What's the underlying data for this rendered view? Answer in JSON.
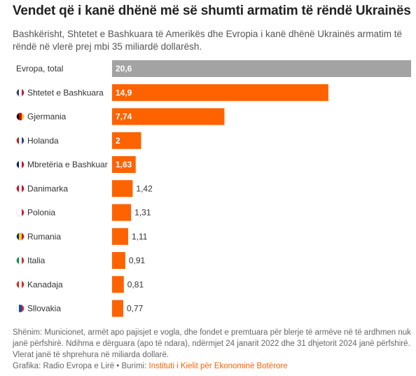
{
  "chart_data": {
    "type": "bar",
    "orientation": "horizontal",
    "title": "Vendet që i kanë dhënë më së shumti armatim të rëndë Ukrainës",
    "subtitle": "Bashkërisht, Shtetet e Bashkuara të Amerikës dhe Evropia i kanë dhënë Ukrainës armatim të rëndë në vlerë prej mbi 35 miliardë dollarësh.",
    "categories": [
      "Evropa, total",
      "Shtetet e Bashkuara",
      "Gjermania",
      "Holanda",
      "Mbretëria e Bashkuar",
      "Danimarka",
      "Polonia",
      "Rumania",
      "Italia",
      "Kanadaja",
      "Sllovakia"
    ],
    "values": [
      20.6,
      14.9,
      7.74,
      2,
      1.63,
      1.42,
      1.31,
      1.11,
      0.91,
      0.81,
      0.77
    ],
    "value_labels": [
      "20,6",
      "14,9",
      "7,74",
      "2",
      "1,63",
      "1,42",
      "1,31",
      "1,11",
      "0,91",
      "0,81",
      "0,77"
    ],
    "colors": [
      "#a3a3a3",
      "#ff6200",
      "#ff6200",
      "#ff6200",
      "#ff6200",
      "#ff6200",
      "#ff6200",
      "#ff6200",
      "#ff6200",
      "#ff6200",
      "#ff6200"
    ],
    "note": "Shënim: Municionet, armët apo pajisjet e vogla, dhe fondet e premtuara për blerje të armëve në të ardhmen nuk janë përfshirë. Ndihma e dërguara (apo të ndara), ndërmjet 24 janarit 2022 dhe 31 dhjetorit 2024 janë përfshirë. Vlerat janë të shprehura në miliarda dollarë.",
    "credit": "Grafika: Radio Evropa e Lirë • Burimi:",
    "source": "Instituti i Kielit për Ekonominë Botërore"
  }
}
